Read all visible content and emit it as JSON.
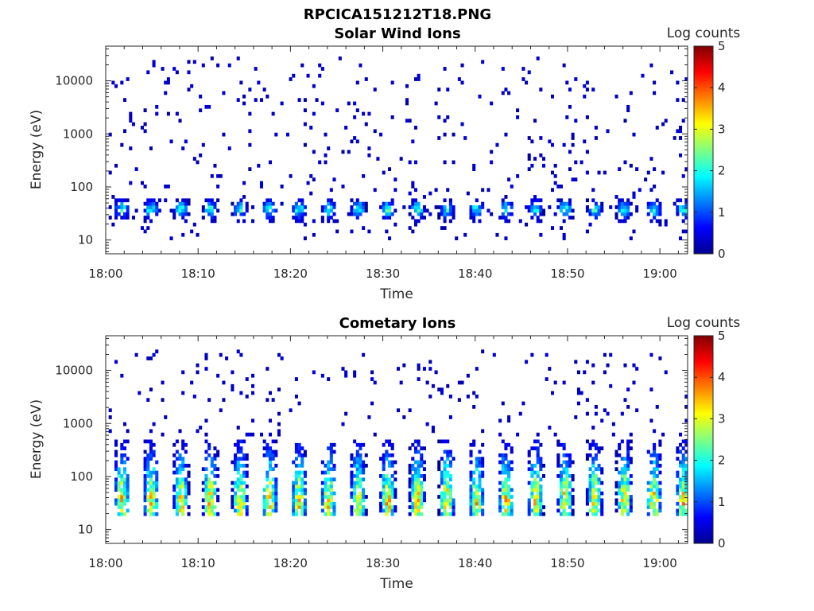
{
  "figure": {
    "title": "RPCICA151212T18.PNG"
  },
  "colors": {
    "colormap": [
      "#00008f",
      "#0000ff",
      "#0080ff",
      "#00ffff",
      "#80ff80",
      "#ffff00",
      "#ff8000",
      "#ff0000",
      "#800000"
    ],
    "axis": "#262626",
    "background": "#ffffff"
  },
  "chart_data": [
    {
      "type": "heatmap",
      "title": "Solar Wind Ions",
      "xlabel": "Time",
      "ylabel": "Energy (eV)",
      "y_scale": "log",
      "ylim": [
        5.5,
        45000
      ],
      "xlim": [
        "18:00",
        "19:03"
      ],
      "x_ticks": [
        "18:00",
        "18:10",
        "18:20",
        "18:30",
        "18:40",
        "18:50",
        "19:00"
      ],
      "y_ticks": [
        "10",
        "100",
        "1000",
        "10000"
      ],
      "colorbar": {
        "label": "Log counts",
        "range": [
          0,
          5
        ],
        "ticks": [
          "0",
          "1",
          "2",
          "3",
          "4",
          "5"
        ]
      },
      "pattern": {
        "burst_period_min": 3.2,
        "burst_start_min": 0.7,
        "burst_energy_eV": [
          22,
          62
        ],
        "burst_peak_eV": 38,
        "burst_peak_log_counts": 2.5,
        "background_energy_eV": [
          10,
          30000
        ],
        "background_log_counts": 0.3
      }
    },
    {
      "type": "heatmap",
      "title": "Cometary Ions",
      "xlabel": "Time",
      "ylabel": "Energy (eV)",
      "y_scale": "log",
      "ylim": [
        5.5,
        45000
      ],
      "xlim": [
        "18:00",
        "19:03"
      ],
      "x_ticks": [
        "18:00",
        "18:10",
        "18:20",
        "18:30",
        "18:40",
        "18:50",
        "19:00"
      ],
      "y_ticks": [
        "10",
        "100",
        "1000",
        "10000"
      ],
      "colorbar": {
        "label": "Log counts",
        "range": [
          0,
          5
        ],
        "ticks": [
          "0",
          "1",
          "2",
          "3",
          "4",
          "5"
        ]
      },
      "pattern": {
        "burst_period_min": 3.2,
        "burst_start_min": 0.7,
        "burst_energy_eV": [
          17,
          500
        ],
        "burst_peak_eV": 35,
        "burst_peak_log_counts": 3.8,
        "background_energy_eV": [
          600,
          25000
        ],
        "background_log_counts": 0.3
      }
    }
  ]
}
